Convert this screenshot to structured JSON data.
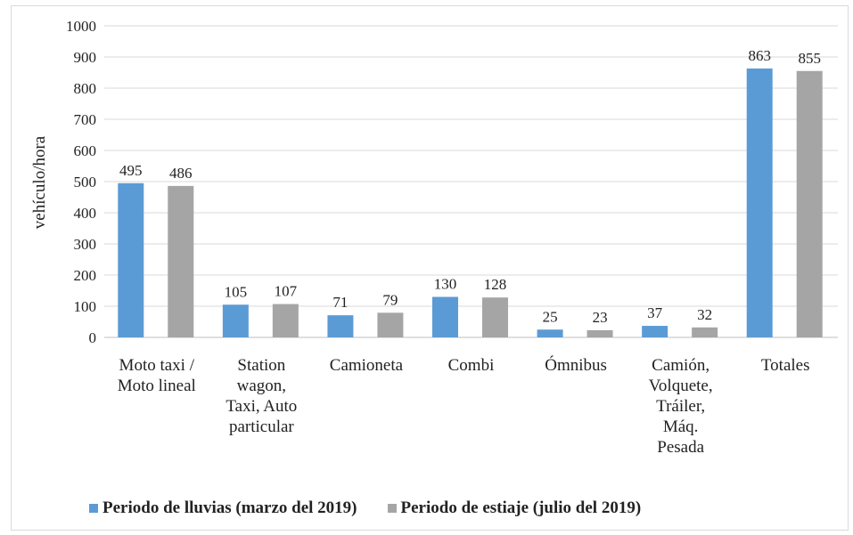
{
  "chart_data": {
    "type": "bar",
    "y_label": "vehículo/hora",
    "categories": [
      "Moto taxi / Moto lineal",
      "Station wagon, Taxi, Auto particular",
      "Camioneta",
      "Combi",
      "Ómnibus",
      "Camión, Volquete, Tráiler, Máq. Pesada",
      "Totales"
    ],
    "series": [
      {
        "name": "Periodo de lluvias (marzo del 2019)",
        "color": "#5b9bd5",
        "values": [
          495,
          105,
          71,
          130,
          25,
          37,
          863
        ]
      },
      {
        "name": "Periodo de estiaje (julio del 2019)",
        "color": "#a5a5a5",
        "values": [
          486,
          107,
          79,
          128,
          23,
          32,
          855
        ]
      }
    ],
    "ylim": [
      0,
      1000
    ],
    "yticks": [
      0,
      100,
      200,
      300,
      400,
      500,
      600,
      700,
      800,
      900,
      1000
    ],
    "grid": true,
    "legend": "bottom"
  }
}
